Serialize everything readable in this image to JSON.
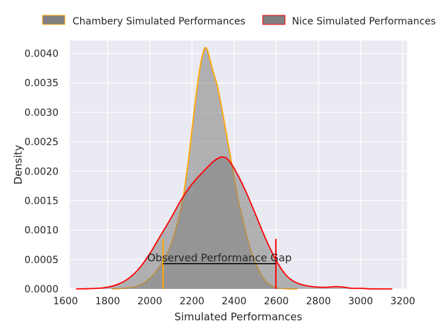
{
  "chart_data": {
    "type": "area",
    "title": "",
    "xlabel": "Simulated Performances",
    "ylabel": "Density",
    "xlim": [
      1620,
      3220
    ],
    "ylim": [
      0,
      0.00422
    ],
    "x_ticks": [
      1600,
      1800,
      2000,
      2200,
      2400,
      2600,
      2800,
      3000,
      3200
    ],
    "y_ticks": [
      0.0,
      0.0005,
      0.001,
      0.0015,
      0.002,
      0.0025,
      0.003,
      0.0035,
      0.004
    ],
    "x_tick_labels": [
      "1600",
      "1800",
      "2000",
      "2200",
      "2400",
      "2600",
      "2800",
      "3000",
      "3200"
    ],
    "y_tick_labels": [
      "0.0000",
      "0.0005",
      "0.0010",
      "0.0015",
      "0.0020",
      "0.0025",
      "0.0030",
      "0.0035",
      "0.0040"
    ],
    "grid": true,
    "legend_position": "top",
    "background_color": "#eaeaf2",
    "series": [
      {
        "name": "Chambery Simulated Performances",
        "line_color": "#ffa500",
        "fill_color": "#808080",
        "fill_opacity": 0.55,
        "x": [
          1820,
          1900,
          1950,
          2000,
          2050,
          2100,
          2150,
          2180,
          2200,
          2220,
          2240,
          2255,
          2265,
          2275,
          2285,
          2300,
          2320,
          2340,
          2360,
          2380,
          2400,
          2420,
          2440,
          2460,
          2480,
          2500,
          2520,
          2540,
          2560,
          2580,
          2600,
          2620,
          2660,
          2700
        ],
        "y": [
          0.0,
          2e-05,
          6e-05,
          0.00018,
          0.0004,
          0.00075,
          0.0014,
          0.0021,
          0.0027,
          0.0033,
          0.0038,
          0.00404,
          0.0041,
          0.00404,
          0.0039,
          0.0037,
          0.00345,
          0.0031,
          0.0027,
          0.0023,
          0.0019,
          0.0015,
          0.0012,
          0.0009,
          0.00065,
          0.00045,
          0.0003,
          0.00018,
          0.0001,
          5e-05,
          2e-05,
          1e-05,
          0.0,
          0.0
        ]
      },
      {
        "name": "Nice Simulated Performances",
        "line_color": "#ff0000",
        "fill_color": "#808080",
        "fill_opacity": 0.55,
        "x": [
          1650,
          1750,
          1800,
          1850,
          1900,
          1950,
          2000,
          2050,
          2100,
          2150,
          2200,
          2250,
          2300,
          2330,
          2350,
          2370,
          2400,
          2450,
          2500,
          2550,
          2600,
          2650,
          2700,
          2750,
          2800,
          2850,
          2880,
          2920,
          2960,
          3000,
          3050,
          3100,
          3150
        ],
        "y": [
          0.0,
          1e-05,
          3e-05,
          8e-05,
          0.00018,
          0.00035,
          0.0006,
          0.0009,
          0.0012,
          0.00152,
          0.00178,
          0.00198,
          0.00216,
          0.00223,
          0.00224,
          0.0022,
          0.00205,
          0.0017,
          0.00128,
          0.00085,
          0.00048,
          0.00022,
          0.0001,
          5e-05,
          3e-05,
          3e-05,
          4e-05,
          3e-05,
          1e-05,
          1e-05,
          0.0,
          0.0,
          0.0
        ]
      }
    ],
    "vertical_markers": [
      {
        "x": 2063,
        "y_top": 0.00085,
        "color": "#ffa500"
      },
      {
        "x": 2598,
        "y_top": 0.00085,
        "color": "#ff0000"
      }
    ],
    "annotation": {
      "text": "Observed Performance Gap",
      "x_start": 2063,
      "x_end": 2598,
      "y": 0.00043,
      "color": "#000000"
    }
  }
}
